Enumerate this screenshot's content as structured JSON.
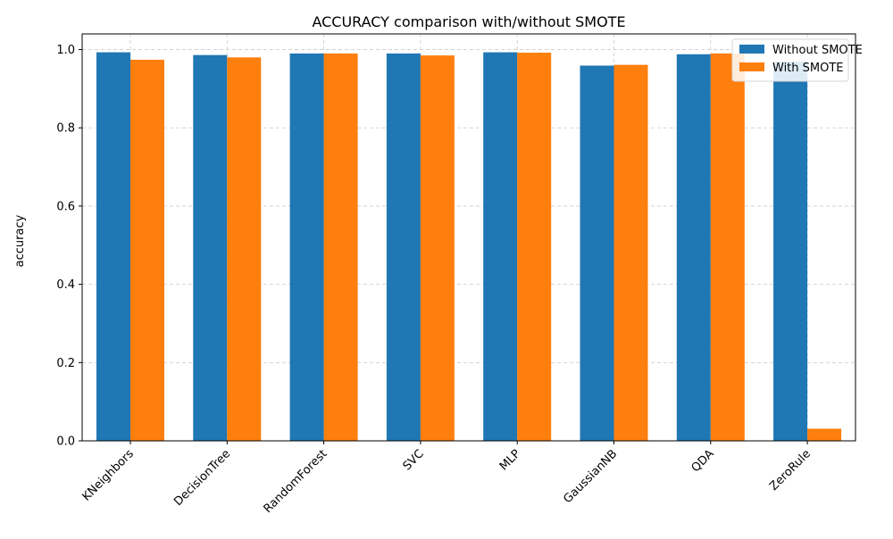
{
  "chart_data": {
    "type": "bar",
    "title": "ACCURACY comparison with/without SMOTE",
    "xlabel": "",
    "ylabel": "accuracy",
    "categories": [
      "KNeighbors",
      "DecisionTree",
      "RandomForest",
      "SVC",
      "MLP",
      "GaussianNB",
      "QDA",
      "ZeroRule"
    ],
    "series": [
      {
        "name": "Without SMOTE",
        "color": "#1f77b4",
        "values": [
          0.993,
          0.986,
          0.99,
          0.99,
          0.993,
          0.959,
          0.988,
          0.969
        ]
      },
      {
        "name": "With SMOTE",
        "color": "#ff7f0e",
        "values": [
          0.974,
          0.98,
          0.99,
          0.985,
          0.992,
          0.961,
          0.99,
          0.031
        ]
      }
    ],
    "ylim": [
      0,
      1.04
    ],
    "yticks": [
      0.0,
      0.2,
      0.4,
      0.6,
      0.8,
      1.0
    ],
    "ytick_labels": [
      "0.0",
      "0.2",
      "0.4",
      "0.6",
      "0.8",
      "1.0"
    ],
    "grid": true,
    "legend_position": "top-right"
  }
}
